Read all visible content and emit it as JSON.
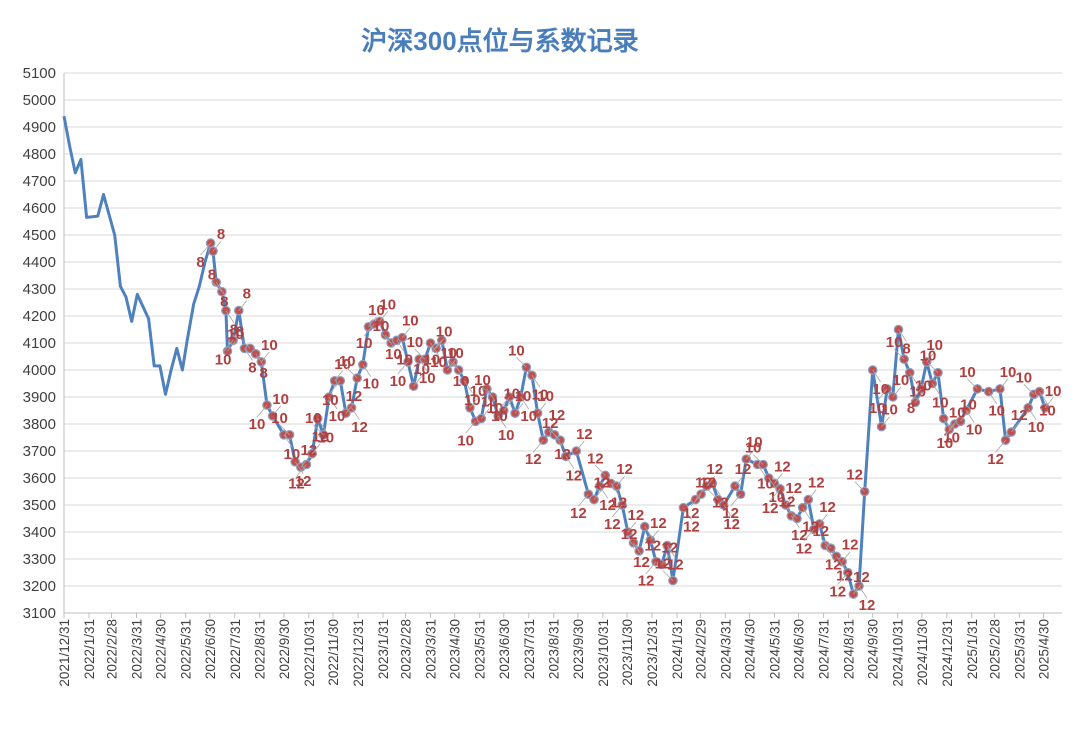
{
  "chart_data": {
    "type": "line",
    "title": "沪深300点位与系数记录",
    "ylim": [
      3100,
      5100
    ],
    "yticks": [
      3100,
      3200,
      3300,
      3400,
      3500,
      3600,
      3700,
      3800,
      3900,
      4000,
      4100,
      4200,
      4300,
      4400,
      4500,
      4600,
      4700,
      4800,
      4900,
      5000,
      5100
    ],
    "x_start": "2021/12/31",
    "x_end": "2025/5/23",
    "grid": true,
    "legend": "none",
    "xticks": [
      "2021/12/31",
      "2022/1/31",
      "2022/2/28",
      "2022/3/31",
      "2022/4/30",
      "2022/5/31",
      "2022/6/30",
      "2022/7/31",
      "2022/8/31",
      "2022/9/30",
      "2022/10/31",
      "2022/11/30",
      "2022/12/31",
      "2023/1/31",
      "2023/2/28",
      "2023/3/31",
      "2023/4/30",
      "2023/5/31",
      "2023/6/30",
      "2023/7/31",
      "2023/8/31",
      "2023/9/30",
      "2023/10/31",
      "2023/11/30",
      "2023/12/31",
      "2024/1/31",
      "2024/2/29",
      "2024/3/31",
      "2024/4/30",
      "2024/5/31",
      "2024/6/30",
      "2024/7/31",
      "2024/8/31",
      "2024/9/30",
      "2024/10/31",
      "2024/11/30",
      "2024/12/31",
      "2025/1/31",
      "2025/2/28",
      "2025/3/31",
      "2025/4/30"
    ],
    "series": [
      {
        "style": "line",
        "points": [
          {
            "x": "2021/12/31",
            "y": 4940
          },
          {
            "x": "2022/1/7",
            "y": 4830
          },
          {
            "x": "2022/1/14",
            "y": 4730
          },
          {
            "x": "2022/1/21",
            "y": 4780
          },
          {
            "x": "2022/1/28",
            "y": 4565
          },
          {
            "x": "2022/2/11",
            "y": 4570
          },
          {
            "x": "2022/2/18",
            "y": 4650
          },
          {
            "x": "2022/3/4",
            "y": 4500
          },
          {
            "x": "2022/3/11",
            "y": 4310
          },
          {
            "x": "2022/3/18",
            "y": 4270
          },
          {
            "x": "2022/3/25",
            "y": 4180
          },
          {
            "x": "2022/4/1",
            "y": 4280
          },
          {
            "x": "2022/4/15",
            "y": 4190
          },
          {
            "x": "2022/4/22",
            "y": 4015
          },
          {
            "x": "2022/4/29",
            "y": 4015
          },
          {
            "x": "2022/5/6",
            "y": 3910
          },
          {
            "x": "2022/5/13",
            "y": 4000
          },
          {
            "x": "2022/5/20",
            "y": 4080
          },
          {
            "x": "2022/5/27",
            "y": 4000
          },
          {
            "x": "2022/6/2",
            "y": 4110
          },
          {
            "x": "2022/6/10",
            "y": 4245
          },
          {
            "x": "2022/6/17",
            "y": 4310
          },
          {
            "x": "2022/6/24",
            "y": 4400
          }
        ]
      },
      {
        "style": "marked",
        "points": [
          {
            "x": "2022/7/1",
            "y": 4470,
            "label": "8"
          },
          {
            "x": "2022/7/4",
            "y": 4440,
            "label": "8"
          },
          {
            "x": "2022/7/8",
            "y": 4325,
            "label": "8"
          },
          {
            "x": "2022/7/15",
            "y": 4290,
            "label": "8"
          },
          {
            "x": "2022/7/20",
            "y": 4220,
            "label": "8"
          },
          {
            "x": "2022/7/22",
            "y": 4070,
            "label": "10"
          },
          {
            "x": "2022/7/29",
            "y": 4110,
            "label": "10"
          },
          {
            "x": "2022/8/5",
            "y": 4220,
            "label": "8"
          },
          {
            "x": "2022/8/12",
            "y": 4080,
            "label": "8"
          },
          {
            "x": "2022/8/19",
            "y": 4080,
            "label": "8"
          },
          {
            "x": "2022/8/26",
            "y": 4060,
            "label": "8"
          },
          {
            "x": "2022/9/2",
            "y": 4030,
            "label": "10"
          },
          {
            "x": "2022/9/9",
            "y": 3870,
            "label": "10"
          },
          {
            "x": "2022/9/16",
            "y": 3830,
            "label": "10"
          },
          {
            "x": "2022/9/30",
            "y": 3760,
            "label": "10"
          },
          {
            "x": "2022/10/7",
            "y": 3760,
            "label": "10"
          },
          {
            "x": "2022/10/14",
            "y": 3660,
            "label": "12"
          },
          {
            "x": "2022/10/21",
            "y": 3640,
            "label": "12"
          },
          {
            "x": "2022/10/28",
            "y": 3650,
            "label": "12"
          },
          {
            "x": "2022/11/4",
            "y": 3690,
            "label": "12"
          },
          {
            "x": "2022/11/11",
            "y": 3820,
            "label": "10"
          },
          {
            "x": "2022/11/18",
            "y": 3760,
            "label": "10"
          },
          {
            "x": "2022/11/25",
            "y": 3900,
            "label": "10"
          },
          {
            "x": "2022/12/2",
            "y": 3960,
            "label": "10"
          },
          {
            "x": "2022/12/9",
            "y": 3960,
            "label": "10"
          },
          {
            "x": "2022/12/16",
            "y": 3840,
            "label": "12"
          },
          {
            "x": "2022/12/23",
            "y": 3860,
            "label": "12"
          },
          {
            "x": "2022/12/30",
            "y": 3970,
            "label": "10"
          },
          {
            "x": "2023/1/6",
            "y": 4020,
            "label": "10"
          },
          {
            "x": "2023/1/13",
            "y": 4160,
            "label": "10"
          },
          {
            "x": "2023/1/20",
            "y": 4170,
            "label": "10"
          },
          {
            "x": "2023/1/27",
            "y": 4180,
            "label": "10"
          },
          {
            "x": "2023/2/3",
            "y": 4130,
            "label": "10"
          },
          {
            "x": "2023/2/10",
            "y": 4100,
            "label": "10"
          },
          {
            "x": "2023/2/17",
            "y": 4110,
            "label": "10"
          },
          {
            "x": "2023/2/24",
            "y": 4120,
            "label": "10"
          },
          {
            "x": "2023/3/3",
            "y": 4030,
            "label": "10"
          },
          {
            "x": "2023/3/10",
            "y": 3940,
            "label": "10"
          },
          {
            "x": "2023/3/17",
            "y": 4040,
            "label": "10"
          },
          {
            "x": "2023/3/24",
            "y": 4040,
            "label": "10"
          },
          {
            "x": "2023/3/31",
            "y": 4100,
            "label": "10"
          },
          {
            "x": "2023/4/7",
            "y": 4080,
            "label": "10"
          },
          {
            "x": "2023/4/14",
            "y": 4110,
            "label": "10"
          },
          {
            "x": "2023/4/21",
            "y": 4000,
            "label": "10"
          },
          {
            "x": "2023/4/28",
            "y": 4030,
            "label": "10"
          },
          {
            "x": "2023/5/5",
            "y": 4000,
            "label": "10"
          },
          {
            "x": "2023/5/12",
            "y": 3960,
            "label": "10"
          },
          {
            "x": "2023/5/19",
            "y": 3860,
            "label": "10"
          },
          {
            "x": "2023/5/26",
            "y": 3810,
            "label": "10"
          },
          {
            "x": "2023/6/2",
            "y": 3820,
            "label": "10"
          },
          {
            "x": "2023/6/9",
            "y": 3930,
            "label": "10"
          },
          {
            "x": "2023/6/16",
            "y": 3900,
            "label": "10"
          },
          {
            "x": "2023/6/23",
            "y": 3830,
            "label": "10"
          },
          {
            "x": "2023/6/30",
            "y": 3850,
            "label": "10"
          },
          {
            "x": "2023/7/7",
            "y": 3900,
            "label": "10"
          },
          {
            "x": "2023/7/14",
            "y": 3840,
            "label": "10"
          },
          {
            "x": "2023/7/21",
            "y": 3900,
            "label": "10"
          },
          {
            "x": "2023/7/28",
            "y": 4010,
            "label": "10"
          },
          {
            "x": "2023/8/4",
            "y": 3980,
            "label": "10"
          },
          {
            "x": "2023/8/11",
            "y": 3840,
            "label": "10"
          },
          {
            "x": "2023/8/18",
            "y": 3740,
            "label": "12"
          },
          {
            "x": "2023/8/25",
            "y": 3770,
            "label": "12"
          },
          {
            "x": "2023/9/1",
            "y": 3760,
            "label": "12"
          },
          {
            "x": "2023/9/8",
            "y": 3740,
            "label": "12"
          },
          {
            "x": "2023/9/15",
            "y": 3680,
            "label": "12"
          },
          {
            "x": "2023/9/28",
            "y": 3700,
            "label": "12"
          },
          {
            "x": "2023/10/13",
            "y": 3540,
            "label": "12"
          },
          {
            "x": "2023/10/20",
            "y": 3520,
            "label": "12"
          },
          {
            "x": "2023/10/27",
            "y": 3570,
            "label": "12"
          },
          {
            "x": "2023/11/3",
            "y": 3610,
            "label": "12"
          },
          {
            "x": "2023/11/10",
            "y": 3580,
            "label": "12"
          },
          {
            "x": "2023/11/17",
            "y": 3570,
            "label": "12"
          },
          {
            "x": "2023/11/24",
            "y": 3500,
            "label": "12"
          },
          {
            "x": "2023/12/1",
            "y": 3400,
            "label": "12"
          },
          {
            "x": "2023/12/8",
            "y": 3360,
            "label": "12"
          },
          {
            "x": "2023/12/15",
            "y": 3330,
            "label": "12"
          },
          {
            "x": "2023/12/22",
            "y": 3420,
            "label": "12"
          },
          {
            "x": "2023/12/29",
            "y": 3370,
            "label": "12"
          },
          {
            "x": "2024/1/5",
            "y": 3290,
            "label": "12"
          },
          {
            "x": "2024/1/12",
            "y": 3280,
            "label": "12"
          },
          {
            "x": "2024/1/19",
            "y": 3350,
            "label": "12"
          },
          {
            "x": "2024/1/26",
            "y": 3220,
            "label": "12"
          },
          {
            "x": "2024/2/8",
            "y": 3490,
            "label": "12"
          },
          {
            "x": "2024/2/23",
            "y": 3520,
            "label": "12"
          },
          {
            "x": "2024/3/1",
            "y": 3540,
            "label": "12"
          },
          {
            "x": "2024/3/8",
            "y": 3570,
            "label": "12"
          },
          {
            "x": "2024/3/15",
            "y": 3580,
            "label": "12"
          },
          {
            "x": "2024/3/22",
            "y": 3520,
            "label": "12"
          },
          {
            "x": "2024/3/29",
            "y": 3500,
            "label": "12"
          },
          {
            "x": "2024/4/12",
            "y": 3570,
            "label": "12"
          },
          {
            "x": "2024/4/19",
            "y": 3540,
            "label": "12"
          },
          {
            "x": "2024/4/26",
            "y": 3670,
            "label": "10"
          },
          {
            "x": "2024/5/10",
            "y": 3650,
            "label": "10"
          },
          {
            "x": "2024/5/17",
            "y": 3650,
            "label": "10"
          },
          {
            "x": "2024/5/24",
            "y": 3600,
            "label": "10"
          },
          {
            "x": "2024/5/31",
            "y": 3580,
            "label": "12"
          },
          {
            "x": "2024/6/7",
            "y": 3560,
            "label": "12"
          },
          {
            "x": "2024/6/14",
            "y": 3500,
            "label": "12"
          },
          {
            "x": "2024/6/21",
            "y": 3460,
            "label": "12"
          },
          {
            "x": "2024/6/28",
            "y": 3450,
            "label": "12"
          },
          {
            "x": "2024/7/5",
            "y": 3490,
            "label": "12"
          },
          {
            "x": "2024/7/12",
            "y": 3520,
            "label": "12"
          },
          {
            "x": "2024/7/19",
            "y": 3410,
            "label": "12"
          },
          {
            "x": "2024/7/26",
            "y": 3430,
            "label": "12"
          },
          {
            "x": "2024/8/2",
            "y": 3350,
            "label": "12"
          },
          {
            "x": "2024/8/9",
            "y": 3340,
            "label": "12"
          },
          {
            "x": "2024/8/16",
            "y": 3310,
            "label": "12"
          },
          {
            "x": "2024/8/23",
            "y": 3290,
            "label": "12"
          },
          {
            "x": "2024/8/30",
            "y": 3250,
            "label": "12"
          },
          {
            "x": "2024/9/6",
            "y": 3170,
            "label": "12"
          },
          {
            "x": "2024/9/13",
            "y": 3200,
            "label": "12"
          },
          {
            "x": "2024/9/20",
            "y": 3550,
            "label": "12"
          },
          {
            "x": "2024/9/30",
            "y": 4000,
            "label": "10"
          },
          {
            "x": "2024/10/11",
            "y": 3790,
            "label": "10"
          },
          {
            "x": "2024/10/18",
            "y": 3930,
            "label": "10"
          },
          {
            "x": "2024/10/25",
            "y": 3900,
            "label": "10"
          },
          {
            "x": "2024/11/1",
            "y": 4150,
            "label": "8"
          },
          {
            "x": "2024/11/8",
            "y": 4040,
            "label": "10"
          },
          {
            "x": "2024/11/15",
            "y": 3990,
            "label": "10"
          },
          {
            "x": "2024/11/22",
            "y": 3880,
            "label": "10"
          },
          {
            "x": "2024/11/29",
            "y": 3930,
            "label": "8"
          },
          {
            "x": "2024/12/6",
            "y": 4030,
            "label": "10"
          },
          {
            "x": "2024/12/13",
            "y": 3950,
            "label": "10"
          },
          {
            "x": "2024/12/20",
            "y": 3990,
            "label": "10"
          },
          {
            "x": "2024/12/27",
            "y": 3820,
            "label": "10"
          },
          {
            "x": "2025/1/3",
            "y": 3780,
            "label": "10"
          },
          {
            "x": "2025/1/10",
            "y": 3800,
            "label": "10"
          },
          {
            "x": "2025/1/17",
            "y": 3810,
            "label": "10"
          },
          {
            "x": "2025/1/24",
            "y": 3850,
            "label": "10"
          },
          {
            "x": "2025/2/7",
            "y": 3930,
            "label": "10"
          },
          {
            "x": "2025/2/21",
            "y": 3920,
            "label": "10"
          },
          {
            "x": "2025/3/7",
            "y": 3930,
            "label": "10"
          },
          {
            "x": "2025/3/14",
            "y": 3740,
            "label": "12"
          },
          {
            "x": "2025/3/21",
            "y": 3770,
            "label": "12"
          },
          {
            "x": "2025/4/11",
            "y": 3860,
            "label": "10"
          },
          {
            "x": "2025/4/18",
            "y": 3910,
            "label": "10"
          },
          {
            "x": "2025/4/25",
            "y": 3920,
            "label": "10"
          },
          {
            "x": "2025/5/2",
            "y": 3860,
            "label": "10"
          }
        ]
      }
    ]
  }
}
